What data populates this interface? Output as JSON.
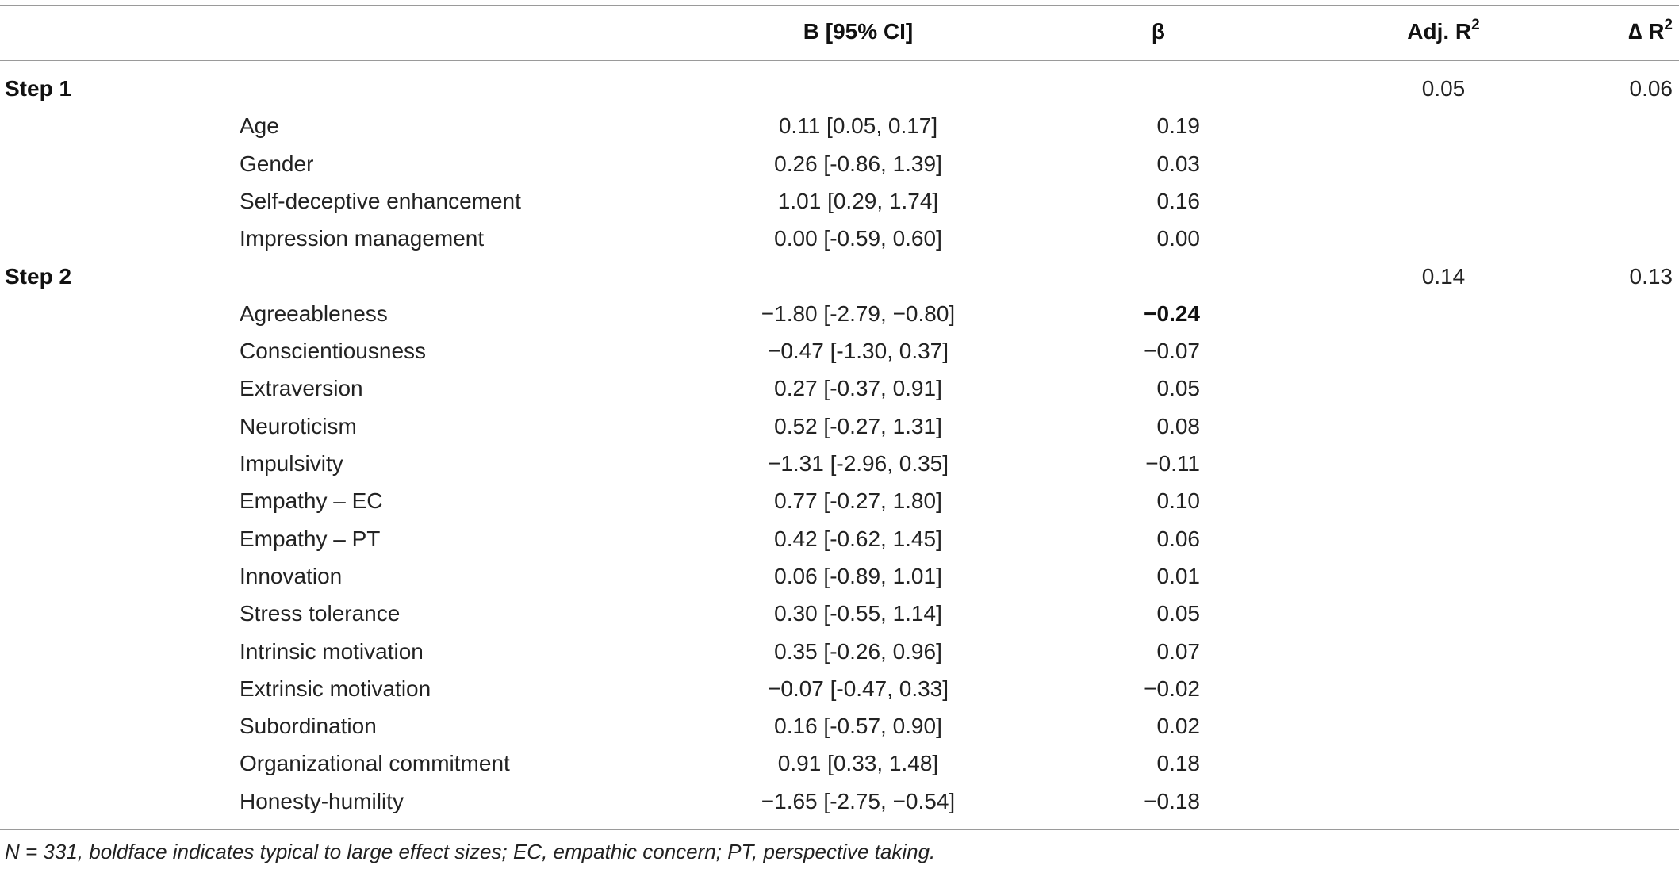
{
  "table": {
    "headers": {
      "col_b": "B [95% CI]",
      "col_beta": "β",
      "col_adj_r2_base": "Adj. R",
      "col_adj_r2_sup": "2",
      "col_delta_r2_base": "∆ R",
      "col_delta_r2_sup": "2"
    },
    "steps": [
      {
        "label": "Step 1",
        "adj_r2": "0.05",
        "delta_r2": "0.06",
        "rows": [
          {
            "variable": "Age",
            "b_ci": "0.11 [0.05, 0.17]",
            "beta": "0.19",
            "beta_bold": false
          },
          {
            "variable": "Gender",
            "b_ci": "0.26 [-0.86, 1.39]",
            "beta": "0.03",
            "beta_bold": false
          },
          {
            "variable": "Self-deceptive enhancement",
            "b_ci": "1.01 [0.29, 1.74]",
            "beta": "0.16",
            "beta_bold": false
          },
          {
            "variable": "Impression management",
            "b_ci": "0.00 [-0.59, 0.60]",
            "beta": "0.00",
            "beta_bold": false
          }
        ]
      },
      {
        "label": "Step 2",
        "adj_r2": "0.14",
        "delta_r2": "0.13",
        "rows": [
          {
            "variable": "Agreeableness",
            "b_ci": "−1.80 [-2.79, −0.80]",
            "beta": "−0.24",
            "beta_bold": true
          },
          {
            "variable": "Conscientiousness",
            "b_ci": "−0.47 [-1.30, 0.37]",
            "beta": "−0.07",
            "beta_bold": false
          },
          {
            "variable": "Extraversion",
            "b_ci": "0.27 [-0.37, 0.91]",
            "beta": "0.05",
            "beta_bold": false
          },
          {
            "variable": "Neuroticism",
            "b_ci": "0.52 [-0.27, 1.31]",
            "beta": "0.08",
            "beta_bold": false
          },
          {
            "variable": "Impulsivity",
            "b_ci": "−1.31 [-2.96, 0.35]",
            "beta": "−0.11",
            "beta_bold": false
          },
          {
            "variable": "Empathy – EC",
            "b_ci": "0.77 [-0.27, 1.80]",
            "beta": "0.10",
            "beta_bold": false
          },
          {
            "variable": "Empathy – PT",
            "b_ci": "0.42 [-0.62, 1.45]",
            "beta": "0.06",
            "beta_bold": false
          },
          {
            "variable": "Innovation",
            "b_ci": "0.06 [-0.89, 1.01]",
            "beta": "0.01",
            "beta_bold": false
          },
          {
            "variable": "Stress tolerance",
            "b_ci": "0.30 [-0.55, 1.14]",
            "beta": "0.05",
            "beta_bold": false
          },
          {
            "variable": "Intrinsic motivation",
            "b_ci": "0.35 [-0.26, 0.96]",
            "beta": "0.07",
            "beta_bold": false
          },
          {
            "variable": "Extrinsic motivation",
            "b_ci": "−0.07 [-0.47, 0.33]",
            "beta": "−0.02",
            "beta_bold": false
          },
          {
            "variable": "Subordination",
            "b_ci": "0.16 [-0.57, 0.90]",
            "beta": "0.02",
            "beta_bold": false
          },
          {
            "variable": "Organizational commitment",
            "b_ci": "0.91 [0.33, 1.48]",
            "beta": "0.18",
            "beta_bold": false
          },
          {
            "variable": "Honesty-humility",
            "b_ci": "−1.65 [-2.75, −0.54]",
            "beta": "−0.18",
            "beta_bold": false
          }
        ]
      }
    ]
  },
  "footnote": "N = 331, boldface indicates typical to large effect sizes; EC, empathic concern; PT, perspective taking."
}
